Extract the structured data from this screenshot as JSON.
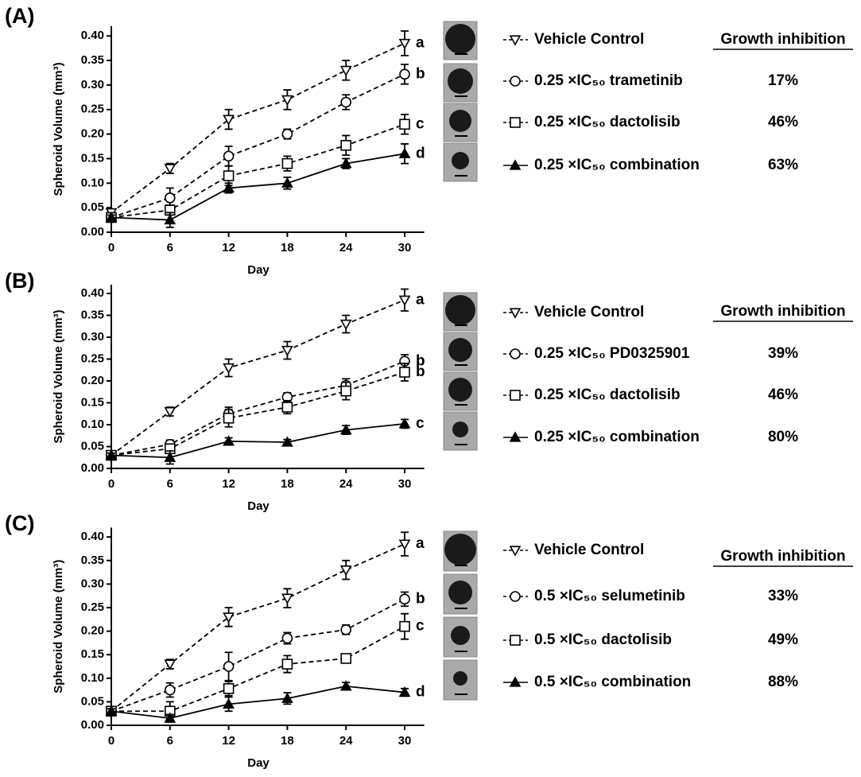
{
  "chart_data": [
    {
      "type": "line",
      "panel": "(A)",
      "y_label": "Spheroid Volume (mm³)",
      "x_label": "Day",
      "table_header": "Growth inhibition",
      "x": [
        0,
        6,
        12,
        18,
        24,
        30
      ],
      "xlim": [
        0,
        32
      ],
      "xticks": [
        0,
        6,
        12,
        18,
        24,
        30
      ],
      "ylim": [
        0,
        0.42
      ],
      "yticks": [
        {
          "value": 0,
          "label": "0.00"
        },
        {
          "value": 0.05,
          "label": "0.05"
        },
        {
          "value": 0.1,
          "label": "0.10"
        },
        {
          "value": 0.15,
          "label": "0.15"
        },
        {
          "value": 0.2,
          "label": "0.20"
        },
        {
          "value": 0.25,
          "label": "0.25"
        },
        {
          "value": 0.3,
          "label": "0.30"
        },
        {
          "value": 0.35,
          "label": "0.35"
        },
        {
          "value": 0.4,
          "label": "0.40"
        }
      ],
      "series": [
        {
          "name": "Vehicle Control",
          "color": "#000000",
          "marker": "tri-down",
          "filled": false,
          "dashed": true,
          "annotation": "a",
          "values": [
            0.04,
            0.13,
            0.23,
            0.27,
            0.33,
            0.385
          ],
          "errors": [
            0.005,
            0.01,
            0.02,
            0.02,
            0.02,
            0.025
          ]
        },
        {
          "name": "0.25 ×IC₅₀ trametinib",
          "color": "#000000",
          "marker": "circle",
          "filled": false,
          "dashed": true,
          "annotation": "b",
          "inhibition": "17%",
          "values": [
            0.03,
            0.07,
            0.155,
            0.2,
            0.265,
            0.322
          ],
          "errors": [
            0.005,
            0.02,
            0.02,
            0.01,
            0.015,
            0.02
          ]
        },
        {
          "name": "0.25 ×IC₅₀ dactolisib",
          "color": "#000000",
          "marker": "square",
          "filled": false,
          "dashed": true,
          "annotation": "c",
          "inhibition": "46%",
          "values": [
            0.03,
            0.045,
            0.115,
            0.14,
            0.177,
            0.22
          ],
          "errors": [
            0.005,
            0.01,
            0.02,
            0.015,
            0.02,
            0.02
          ]
        },
        {
          "name": "0.25 ×IC₅₀ combination",
          "color": "#000000",
          "marker": "tri-up",
          "filled": true,
          "dashed": false,
          "annotation": "d",
          "inhibition": "63%",
          "values": [
            0.03,
            0.025,
            0.09,
            0.1,
            0.14,
            0.16
          ],
          "errors": [
            0.005,
            0.015,
            0.01,
            0.012,
            0.01,
            0.02
          ]
        }
      ]
    },
    {
      "type": "line",
      "panel": "(B)",
      "y_label": "Spheroid Volume (mm³)",
      "x_label": "Day",
      "table_header": "Growth inhibition",
      "x": [
        0,
        6,
        12,
        18,
        24,
        30
      ],
      "xlim": [
        0,
        32
      ],
      "xticks": [
        0,
        6,
        12,
        18,
        24,
        30
      ],
      "ylim": [
        0,
        0.42
      ],
      "yticks": [
        {
          "value": 0,
          "label": "0.00"
        },
        {
          "value": 0.05,
          "label": "0.05"
        },
        {
          "value": 0.1,
          "label": "0.10"
        },
        {
          "value": 0.15,
          "label": "0.15"
        },
        {
          "value": 0.2,
          "label": "0.20"
        },
        {
          "value": 0.25,
          "label": "0.25"
        },
        {
          "value": 0.3,
          "label": "0.30"
        },
        {
          "value": 0.35,
          "label": "0.35"
        },
        {
          "value": 0.4,
          "label": "0.40"
        }
      ],
      "series": [
        {
          "name": "Vehicle Control",
          "color": "#000000",
          "marker": "tri-down",
          "filled": false,
          "dashed": true,
          "annotation": "a",
          "values": [
            0.03,
            0.13,
            0.23,
            0.27,
            0.33,
            0.385
          ],
          "errors": [
            0.005,
            0.01,
            0.02,
            0.02,
            0.02,
            0.025
          ]
        },
        {
          "name": "0.25 ×IC₅₀ PD0325901",
          "color": "#000000",
          "marker": "circle",
          "filled": false,
          "dashed": true,
          "annotation": "b",
          "inhibition": "39%",
          "values": [
            0.03,
            0.055,
            0.125,
            0.163,
            0.19,
            0.245
          ],
          "errors": [
            0.005,
            0.01,
            0.015,
            0.01,
            0.015,
            0.015
          ]
        },
        {
          "name": "0.25 ×IC₅₀ dactolisib",
          "color": "#000000",
          "marker": "square",
          "filled": false,
          "dashed": true,
          "annotation": "b",
          "inhibition": "46%",
          "values": [
            0.03,
            0.045,
            0.115,
            0.14,
            0.177,
            0.22
          ],
          "errors": [
            0.005,
            0.01,
            0.02,
            0.015,
            0.02,
            0.02
          ]
        },
        {
          "name": "0.25 ×IC₅₀ combination",
          "color": "#000000",
          "marker": "tri-up",
          "filled": true,
          "dashed": false,
          "annotation": "c",
          "inhibition": "80%",
          "values": [
            0.03,
            0.025,
            0.062,
            0.06,
            0.088,
            0.102
          ],
          "errors": [
            0.005,
            0.015,
            0.008,
            0.006,
            0.01,
            0.01
          ]
        }
      ]
    },
    {
      "type": "line",
      "panel": "(C)",
      "y_label": "Spheroid Volume (mm³)",
      "x_label": "Day",
      "table_header": "Growth inhibition",
      "x": [
        0,
        6,
        12,
        18,
        24,
        30
      ],
      "xlim": [
        0,
        32
      ],
      "xticks": [
        0,
        6,
        12,
        18,
        24,
        30
      ],
      "ylim": [
        0,
        0.42
      ],
      "yticks": [
        {
          "value": 0,
          "label": "0.00"
        },
        {
          "value": 0.05,
          "label": "0.05"
        },
        {
          "value": 0.1,
          "label": "0.10"
        },
        {
          "value": 0.15,
          "label": "0.15"
        },
        {
          "value": 0.2,
          "label": "0.20"
        },
        {
          "value": 0.25,
          "label": "0.25"
        },
        {
          "value": 0.3,
          "label": "0.30"
        },
        {
          "value": 0.35,
          "label": "0.35"
        },
        {
          "value": 0.4,
          "label": "0.40"
        }
      ],
      "series": [
        {
          "name": "Vehicle Control",
          "color": "#000000",
          "marker": "tri-down",
          "filled": false,
          "dashed": true,
          "annotation": "a",
          "values": [
            0.03,
            0.13,
            0.23,
            0.27,
            0.33,
            0.385
          ],
          "errors": [
            0.005,
            0.01,
            0.02,
            0.02,
            0.02,
            0.025
          ]
        },
        {
          "name": "0.5 ×IC₅₀ selumetinib",
          "color": "#000000",
          "marker": "circle",
          "filled": false,
          "dashed": true,
          "annotation": "b",
          "inhibition": "33%",
          "values": [
            0.03,
            0.075,
            0.125,
            0.185,
            0.203,
            0.268
          ],
          "errors": [
            0.005,
            0.015,
            0.03,
            0.012,
            0.01,
            0.015
          ]
        },
        {
          "name": "0.5 ×IC₅₀ dactolisib",
          "color": "#000000",
          "marker": "square",
          "filled": false,
          "dashed": true,
          "annotation": "c",
          "inhibition": "49%",
          "values": [
            0.03,
            0.03,
            0.078,
            0.13,
            0.142,
            0.21
          ],
          "errors": [
            0.005,
            0.02,
            0.015,
            0.018,
            0.006,
            0.027
          ]
        },
        {
          "name": "0.5 ×IC₅₀ combination",
          "color": "#000000",
          "marker": "tri-up",
          "filled": true,
          "dashed": false,
          "annotation": "d",
          "inhibition": "88%",
          "values": [
            0.03,
            0.015,
            0.045,
            0.057,
            0.083,
            0.07
          ],
          "errors": [
            0.005,
            0.008,
            0.015,
            0.012,
            0.008,
            0.008
          ]
        }
      ]
    }
  ]
}
